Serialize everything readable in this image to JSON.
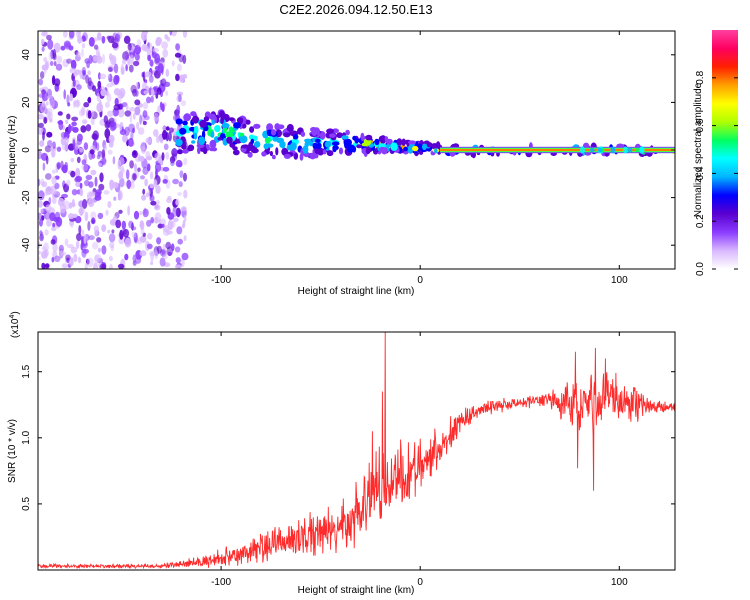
{
  "title": "C2E2.2026.094.12.50.E13",
  "chart_data": [
    {
      "type": "heatmap",
      "title": "C2E2.2026.094.12.50.E13",
      "xlabel": "Height of straight line (km)",
      "ylabel": "Frequency (Hz)",
      "xlim": [
        -192,
        128
      ],
      "ylim": [
        -50,
        50
      ],
      "xticks": [
        -100,
        0,
        100
      ],
      "yticks": [
        -40,
        -20,
        0,
        20,
        40
      ],
      "colorbar": {
        "label": "Normalized spectral amplitude",
        "range": [
          0,
          1
        ],
        "ticks": [
          0.0,
          0.2,
          0.4,
          0.6,
          0.8
        ],
        "colors": [
          "#ffffff",
          "#d9b8ff",
          "#8a3cff",
          "#5a00d0",
          "#0000ff",
          "#00b4ff",
          "#00ffff",
          "#00ff60",
          "#b0ff00",
          "#ffff00",
          "#ffa000",
          "#ff2000",
          "#ff0060",
          "#ff40a0"
        ]
      },
      "features": {
        "noise_region_x": [
          -192,
          -118
        ],
        "noise_density": 0.9,
        "band_centre": [
          {
            "x": -122,
            "f": 8
          },
          {
            "x": -100,
            "f": 8
          },
          {
            "x": -80,
            "f": 4
          },
          {
            "x": -60,
            "f": 3
          },
          {
            "x": -40,
            "f": 3
          },
          {
            "x": -20,
            "f": 2
          },
          {
            "x": 0,
            "f": 1
          },
          {
            "x": 10,
            "f": 0
          },
          {
            "x": 128,
            "f": 0
          }
        ],
        "band_half_width": [
          {
            "x": -122,
            "w": 9
          },
          {
            "x": -80,
            "w": 7
          },
          {
            "x": -40,
            "w": 5
          },
          {
            "x": -20,
            "w": 3
          },
          {
            "x": 0,
            "w": 2
          },
          {
            "x": 128,
            "w": 1.5
          }
        ],
        "carrier_line_x": [
          10,
          128
        ],
        "carrier_line_f": 0
      }
    },
    {
      "type": "line",
      "xlabel": "Height of straight line (km)",
      "ylabel": "SNR (10 * v/v)",
      "y_multiplier_label": "(x10",
      "y_multiplier_exp": "4",
      "y_multiplier_close": ")",
      "xlim": [
        -192,
        128
      ],
      "ylim": [
        0,
        1.8
      ],
      "xticks": [
        -100,
        0,
        100
      ],
      "yticks": [
        0.5,
        1.0,
        1.5
      ],
      "color": "#ff2a2a",
      "envelope": [
        {
          "x": -192,
          "mean": 0.03,
          "amp": 0.015
        },
        {
          "x": -130,
          "mean": 0.03,
          "amp": 0.015
        },
        {
          "x": -110,
          "mean": 0.06,
          "amp": 0.04
        },
        {
          "x": -90,
          "mean": 0.12,
          "amp": 0.09
        },
        {
          "x": -70,
          "mean": 0.22,
          "amp": 0.14
        },
        {
          "x": -50,
          "mean": 0.28,
          "amp": 0.16
        },
        {
          "x": -35,
          "mean": 0.36,
          "amp": 0.2
        },
        {
          "x": -25,
          "mean": 0.55,
          "amp": 0.28
        },
        {
          "x": -18,
          "mean": 0.65,
          "amp": 0.25
        },
        {
          "x": -10,
          "mean": 0.72,
          "amp": 0.22
        },
        {
          "x": 0,
          "mean": 0.78,
          "amp": 0.22
        },
        {
          "x": 10,
          "mean": 0.92,
          "amp": 0.14
        },
        {
          "x": 20,
          "mean": 1.12,
          "amp": 0.08
        },
        {
          "x": 30,
          "mean": 1.22,
          "amp": 0.05
        },
        {
          "x": 50,
          "mean": 1.27,
          "amp": 0.04
        },
        {
          "x": 65,
          "mean": 1.29,
          "amp": 0.05
        },
        {
          "x": 75,
          "mean": 1.27,
          "amp": 0.2
        },
        {
          "x": 90,
          "mean": 1.27,
          "amp": 0.22
        },
        {
          "x": 105,
          "mean": 1.27,
          "amp": 0.17
        },
        {
          "x": 115,
          "mean": 1.24,
          "amp": 0.05
        },
        {
          "x": 128,
          "mean": 1.23,
          "amp": 0.03
        }
      ],
      "spikes": [
        {
          "x": -17.5,
          "y": 1.8
        },
        {
          "x": -19,
          "y": 1.35
        },
        {
          "x": -24,
          "y": 1.05
        },
        {
          "x": 78,
          "y": 1.65
        },
        {
          "x": 88,
          "y": 1.68
        },
        {
          "x": 93,
          "y": 1.6
        },
        {
          "x": 87,
          "y": 0.6
        },
        {
          "x": 79,
          "y": 0.77
        }
      ]
    }
  ]
}
